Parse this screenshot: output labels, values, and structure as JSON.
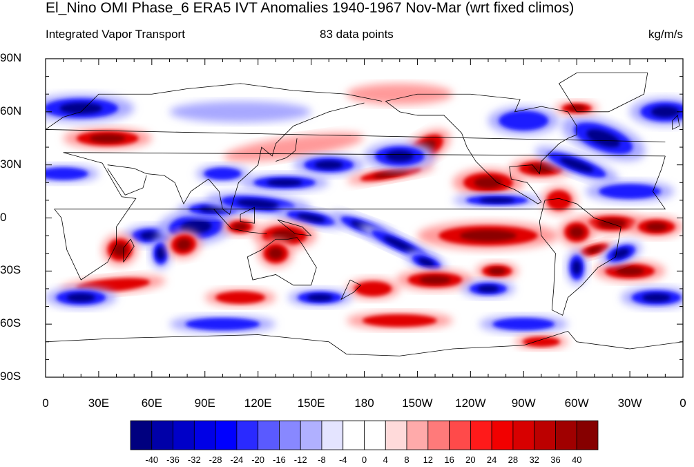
{
  "title": "El_Nino OMI Phase_6 ERA5 IVT Anomalies 1940-1967 Nov-Mar (wrt fixed climos)",
  "subtitle_left": "Integrated Vapor Transport",
  "subtitle_center": "83 data points",
  "subtitle_right": "kg/m/s",
  "lat_labels": [
    "90N",
    "60N",
    "30N",
    "0",
    "30S",
    "60S",
    "90S"
  ],
  "lon_labels": [
    "0",
    "30E",
    "60E",
    "90E",
    "120E",
    "150E",
    "180",
    "150W",
    "120W",
    "90W",
    "60W",
    "30W",
    "0"
  ],
  "colorbar": {
    "colors": [
      "#00007f",
      "#0000a8",
      "#0000c8",
      "#0000e6",
      "#0000ff",
      "#2a2aff",
      "#5a5aff",
      "#8888ff",
      "#b0b0ff",
      "#e4e4ff",
      "#ffffff",
      "#ffffff",
      "#ffdada",
      "#ffaaaa",
      "#ff7a7a",
      "#ff4a4a",
      "#ff1a1a",
      "#f20000",
      "#d80000",
      "#bc0000",
      "#a00000",
      "#860000"
    ],
    "labels": [
      "-40",
      "-36",
      "-32",
      "-28",
      "-24",
      "-20",
      "-16",
      "-12",
      "-8",
      "-4",
      "0",
      "4",
      "8",
      "12",
      "16",
      "20",
      "24",
      "28",
      "32",
      "36",
      "40"
    ]
  },
  "anomaly_colors": {
    "positive_strong": "#8b0000",
    "positive": "#e00000",
    "positive_light": "#ff9a9a",
    "negative_strong": "#00008b",
    "negative": "#1a1aff",
    "negative_light": "#a8a8ff"
  }
}
